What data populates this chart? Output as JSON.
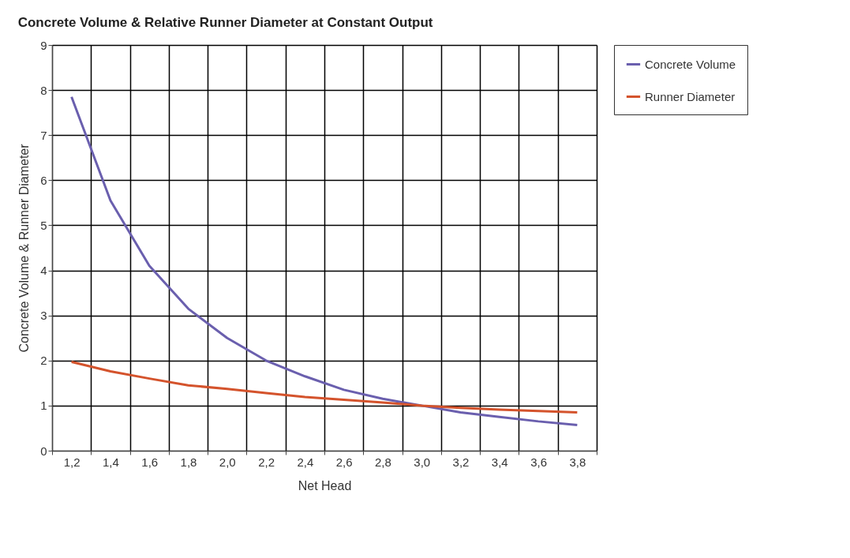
{
  "chart_data": {
    "type": "line",
    "title": "Concrete Volume & Relative Runner Diameter at Constant Output",
    "xlabel": "Net Head",
    "ylabel": "Concrete Volume & Runner Diameter",
    "categories": [
      "1,2",
      "1,4",
      "1,6",
      "1,8",
      "2,0",
      "2,2",
      "2,4",
      "2,6",
      "2,8",
      "3,0",
      "3,2",
      "3,4",
      "3,6",
      "3,8"
    ],
    "series": [
      {
        "name": "Concrete Volume",
        "color": "#6a5fae",
        "values": [
          7.85,
          5.55,
          4.1,
          3.15,
          2.5,
          2.0,
          1.65,
          1.35,
          1.15,
          1.0,
          0.85,
          0.75,
          0.65,
          0.57
        ]
      },
      {
        "name": "Runner Diameter",
        "color": "#d4532c",
        "values": [
          1.97,
          1.76,
          1.6,
          1.45,
          1.37,
          1.28,
          1.19,
          1.13,
          1.07,
          1.0,
          0.95,
          0.91,
          0.88,
          0.85
        ]
      }
    ],
    "ylim": [
      0,
      9
    ],
    "yticks": [
      0,
      1,
      2,
      3,
      4,
      5,
      6,
      7,
      8,
      9
    ],
    "grid": true,
    "legend": "right",
    "marker": "none",
    "line_style": "solid"
  }
}
